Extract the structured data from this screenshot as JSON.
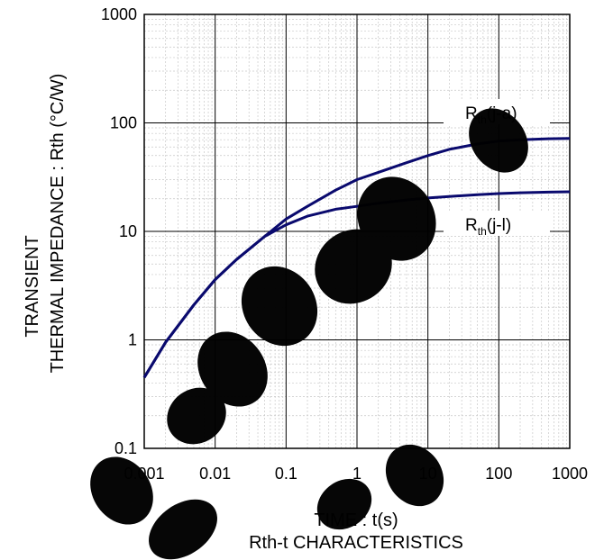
{
  "chart_data": {
    "type": "line",
    "title": "",
    "caption": "Rth-t CHARACTERISTICS",
    "xlabel": "TIME : t(s)",
    "ylabel_line1": "TRANSIENT",
    "ylabel_line2": "THERMAL IMPEDANCE : Rth (°C/W)",
    "x_scale": "log",
    "y_scale": "log",
    "xlim": [
      0.001,
      1000
    ],
    "ylim": [
      0.1,
      1000
    ],
    "x_ticks": [
      "0.001",
      "0.01",
      "0.1",
      "1",
      "10",
      "100",
      "1000"
    ],
    "y_ticks": [
      "0.1",
      "1",
      "10",
      "100",
      "1000"
    ],
    "grid": true,
    "series": [
      {
        "name": "Rth(j-a)",
        "label_main": "R",
        "label_sub": "th",
        "label_tail": "(j-a)",
        "color": "#0a0a6e",
        "points": [
          [
            0.001,
            0.45
          ],
          [
            0.002,
            0.95
          ],
          [
            0.005,
            2.1
          ],
          [
            0.01,
            3.6
          ],
          [
            0.02,
            5.5
          ],
          [
            0.05,
            9.0
          ],
          [
            0.1,
            13.0
          ],
          [
            0.2,
            17.0
          ],
          [
            0.5,
            24.0
          ],
          [
            1,
            30.0
          ],
          [
            2,
            35.0
          ],
          [
            5,
            43.0
          ],
          [
            10,
            50.0
          ],
          [
            20,
            57.0
          ],
          [
            50,
            64.0
          ],
          [
            100,
            68.0
          ],
          [
            200,
            70.0
          ],
          [
            500,
            71.5
          ],
          [
            1000,
            72.0
          ]
        ]
      },
      {
        "name": "Rth(j-l)",
        "label_main": "R",
        "label_sub": "th",
        "label_tail": "(j-l)",
        "color": "#0a0a6e",
        "points": [
          [
            0.001,
            0.45
          ],
          [
            0.002,
            0.95
          ],
          [
            0.005,
            2.1
          ],
          [
            0.01,
            3.6
          ],
          [
            0.02,
            5.5
          ],
          [
            0.05,
            9.0
          ],
          [
            0.1,
            11.5
          ],
          [
            0.2,
            13.8
          ],
          [
            0.5,
            16.0
          ],
          [
            1,
            17.0
          ],
          [
            2,
            18.2
          ],
          [
            5,
            19.5
          ],
          [
            10,
            20.3
          ],
          [
            20,
            21.0
          ],
          [
            50,
            21.8
          ],
          [
            100,
            22.3
          ],
          [
            200,
            22.7
          ],
          [
            500,
            23.0
          ],
          [
            1000,
            23.2
          ]
        ]
      }
    ]
  }
}
